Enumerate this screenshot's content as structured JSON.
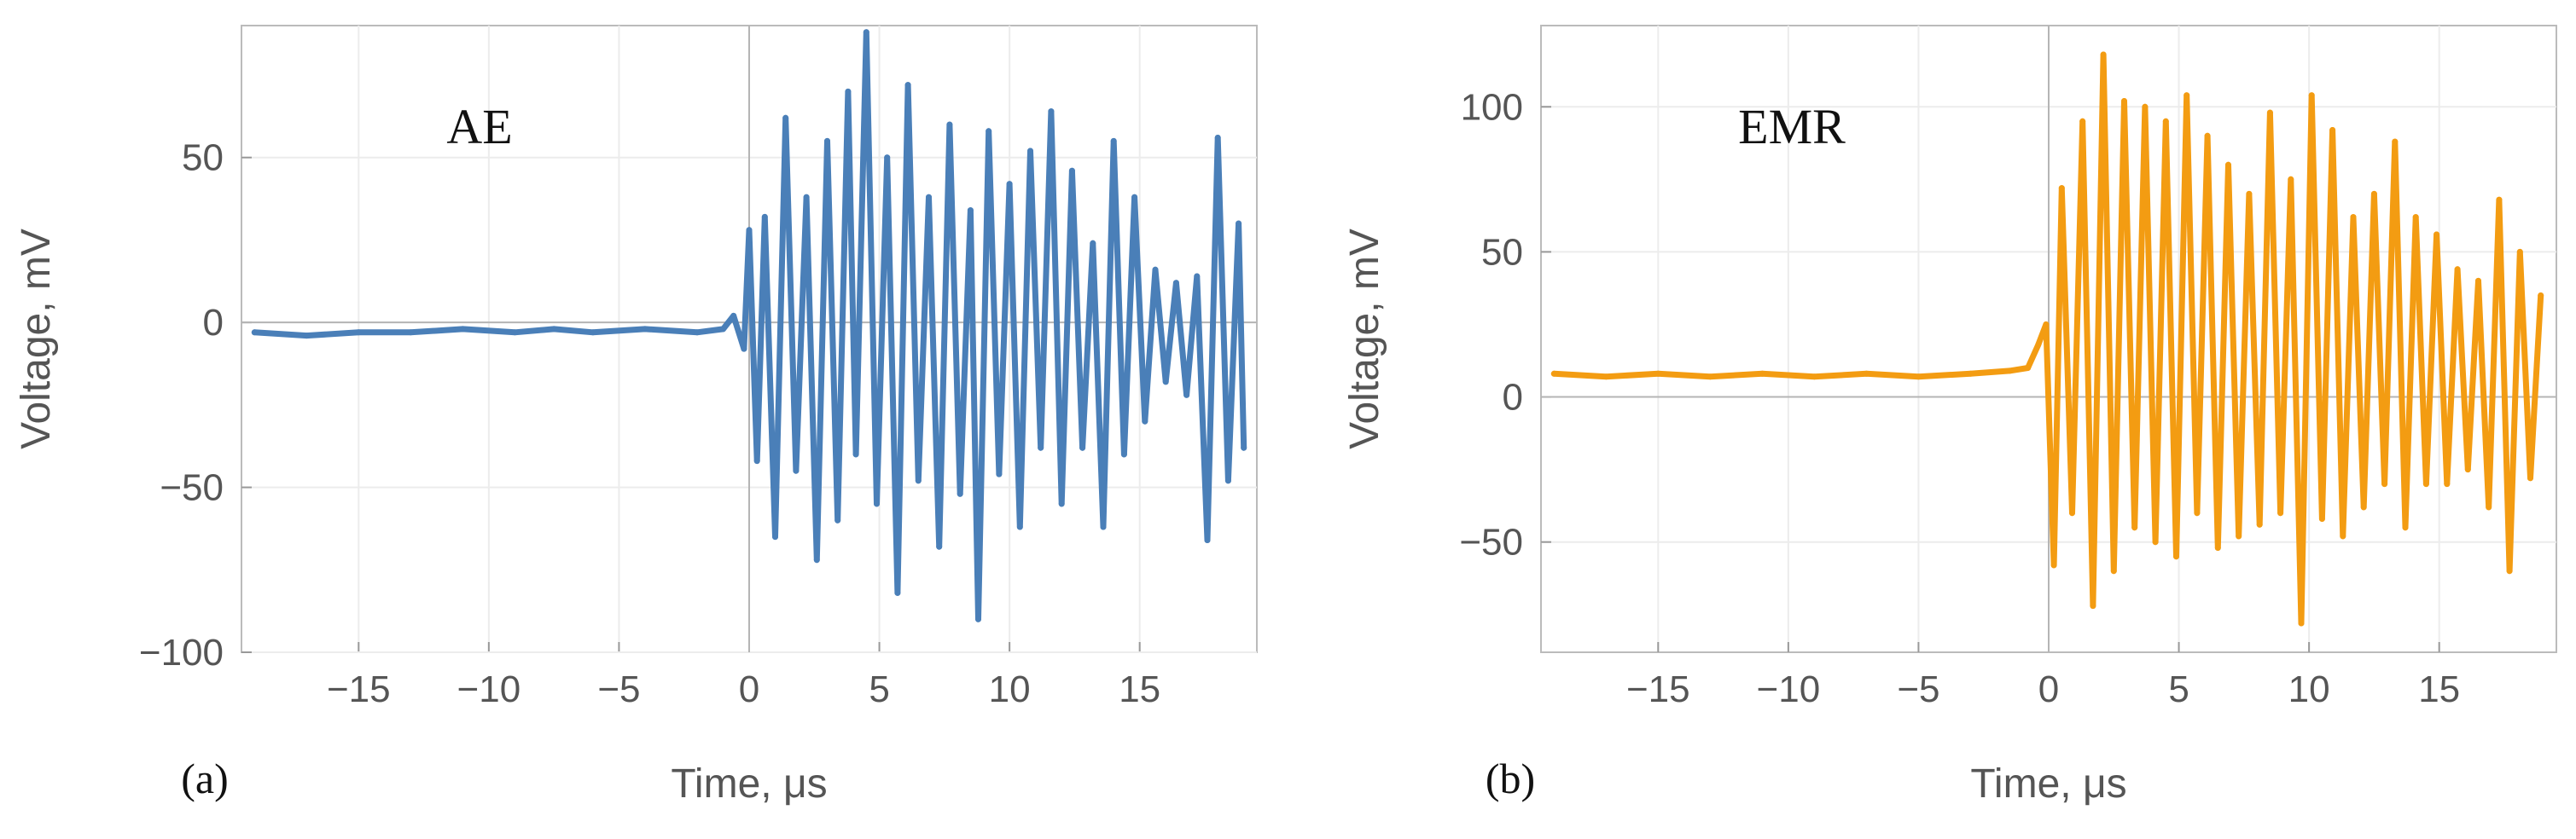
{
  "chart_data": [
    {
      "type": "line",
      "panel_label": "(a)",
      "annotation": "AE",
      "xlabel": "Time, μs",
      "ylabel": "Voltage, mV",
      "xlim": [
        -19.5,
        19.5
      ],
      "ylim": [
        -100,
        90
      ],
      "xticks": [
        -15,
        -10,
        -5,
        0,
        5,
        10,
        15
      ],
      "xtick_labels": [
        "−15",
        "−10",
        "−5",
        "0",
        "5",
        "10",
        "15"
      ],
      "yticks": [
        50,
        0,
        -50,
        -100
      ],
      "ytick_labels": [
        "50",
        "0",
        "−50",
        "−100"
      ],
      "grid": true,
      "color": "#4a7fb8",
      "series": [
        {
          "x": [
            -19,
            -17,
            -15,
            -13,
            -11,
            -9,
            -7.5,
            -6,
            -4,
            -2,
            -1,
            -0.6,
            -0.2,
            0,
            0.3,
            0.6,
            1,
            1.4,
            1.8,
            2.2,
            2.6,
            3,
            3.4,
            3.8,
            4.1,
            4.5,
            4.9,
            5.3,
            5.7,
            6.1,
            6.5,
            6.9,
            7.3,
            7.7,
            8.1,
            8.5,
            8.8,
            9.2,
            9.6,
            10,
            10.4,
            10.8,
            11.2,
            11.6,
            12,
            12.4,
            12.8,
            13.2,
            13.6,
            14,
            14.4,
            14.8,
            15.2,
            15.6,
            16,
            16.4,
            16.8,
            17.2,
            17.6,
            18,
            18.4,
            18.8,
            19
          ],
          "y": [
            -3,
            -4,
            -3,
            -3,
            -2,
            -3,
            -2,
            -3,
            -2,
            -3,
            -2,
            2,
            -8,
            28,
            -42,
            32,
            -65,
            62,
            -45,
            38,
            -72,
            55,
            -60,
            70,
            -40,
            88,
            -55,
            50,
            -82,
            72,
            -48,
            38,
            -68,
            60,
            -52,
            34,
            -90,
            58,
            -46,
            42,
            -62,
            52,
            -38,
            64,
            -55,
            46,
            -38,
            24,
            -62,
            55,
            -40,
            38,
            -30,
            16,
            -18,
            12,
            -22,
            14,
            -66,
            56,
            -48,
            30,
            -38
          ]
        }
      ]
    },
    {
      "type": "line",
      "panel_label": "(b)",
      "annotation": "EMR",
      "xlabel": "Time, μs",
      "ylabel": "Voltage, mV",
      "xlim": [
        -19.5,
        19.5
      ],
      "ylim": [
        -88,
        128
      ],
      "xticks": [
        -15,
        -10,
        -5,
        0,
        5,
        10,
        15
      ],
      "xtick_labels": [
        "−15",
        "−10",
        "−5",
        "0",
        "5",
        "10",
        "15"
      ],
      "yticks": [
        100,
        50,
        0,
        -50
      ],
      "ytick_labels": [
        "100",
        "50",
        "0",
        "−50"
      ],
      "grid": true,
      "color": "#f39c12",
      "series": [
        {
          "x": [
            -19,
            -17,
            -15,
            -13,
            -11,
            -9,
            -7,
            -5,
            -3,
            -1.5,
            -0.8,
            -0.4,
            -0.1,
            0.2,
            0.5,
            0.9,
            1.3,
            1.7,
            2.1,
            2.5,
            2.9,
            3.3,
            3.7,
            4.1,
            4.5,
            4.9,
            5.3,
            5.7,
            6.1,
            6.5,
            6.9,
            7.3,
            7.7,
            8.1,
            8.5,
            8.9,
            9.3,
            9.7,
            10.1,
            10.5,
            10.9,
            11.3,
            11.7,
            12.1,
            12.5,
            12.9,
            13.3,
            13.7,
            14.1,
            14.5,
            14.9,
            15.3,
            15.7,
            16.1,
            16.5,
            16.9,
            17.3,
            17.7,
            18.1,
            18.5,
            18.9
          ],
          "y": [
            8,
            7,
            8,
            7,
            8,
            7,
            8,
            7,
            8,
            9,
            10,
            18,
            25,
            -58,
            72,
            -40,
            95,
            -72,
            118,
            -60,
            102,
            -45,
            100,
            -50,
            95,
            -55,
            104,
            -40,
            90,
            -52,
            80,
            -48,
            70,
            -44,
            98,
            -40,
            75,
            -78,
            104,
            -42,
            92,
            -48,
            62,
            -38,
            70,
            -30,
            88,
            -45,
            62,
            -30,
            56,
            -30,
            44,
            -25,
            40,
            -38,
            68,
            -60,
            50,
            -28,
            35
          ]
        }
      ]
    }
  ]
}
